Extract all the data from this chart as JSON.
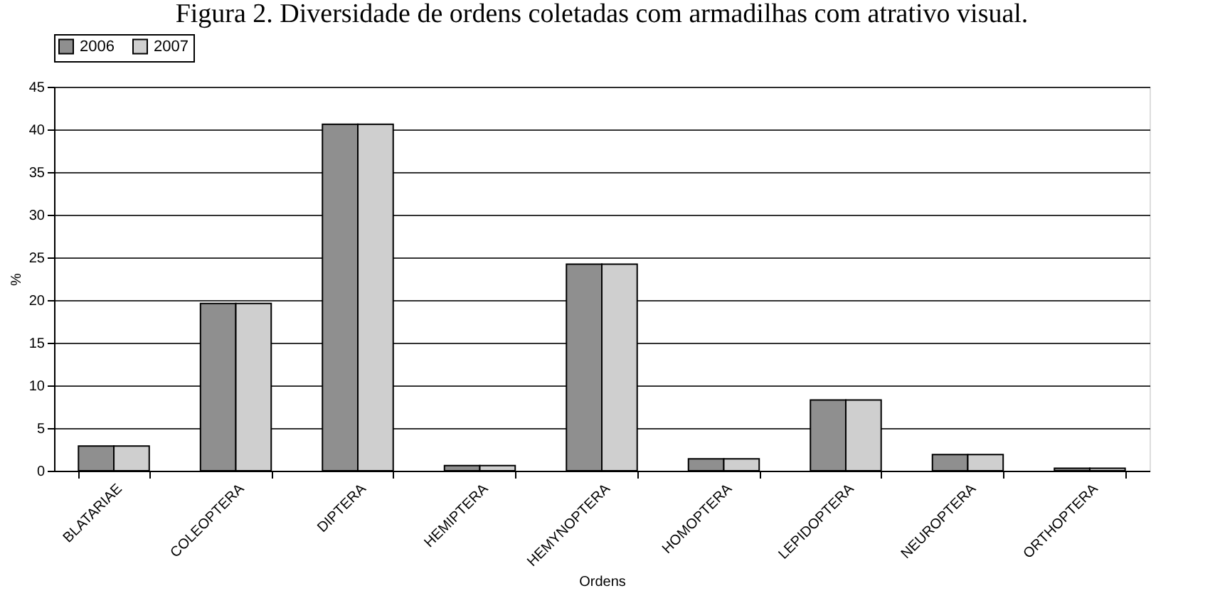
{
  "chart_data": {
    "type": "bar",
    "title": "Figura 2. Diversidade de ordens coletadas com armadilhas com atrativo visual.",
    "xlabel": "Ordens",
    "ylabel": "%",
    "categories": [
      "BLATARIAE",
      "COLEOPTERA",
      "DIPTERA",
      "HEMIPTERA",
      "HEMYNOPTERA",
      "HOMOPTERA",
      "LEPIDOPTERA",
      "NEUROPTERA",
      "ORTHOPTERA"
    ],
    "series": [
      {
        "name": "2006",
        "color": "#8f8f8f",
        "values": [
          2.9,
          19.6,
          40.6,
          0.6,
          24.2,
          1.4,
          8.3,
          1.9,
          0.3
        ]
      },
      {
        "name": "2007",
        "color": "#cfcfcf",
        "values": [
          2.9,
          19.6,
          40.6,
          0.6,
          24.2,
          1.4,
          8.3,
          1.9,
          0.3
        ]
      }
    ],
    "ylim": [
      0,
      45
    ],
    "yticks": [
      0,
      5,
      10,
      15,
      20,
      25,
      30,
      35,
      40,
      45
    ],
    "grid": "y",
    "legend": "top"
  }
}
